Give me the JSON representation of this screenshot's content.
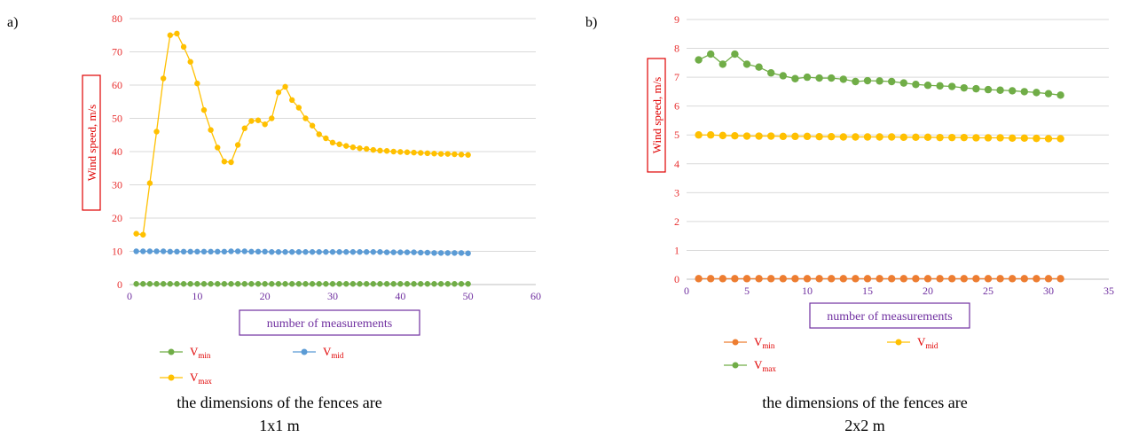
{
  "panels": {
    "a": "a)",
    "b": "b)"
  },
  "captions": {
    "a": {
      "line1": "the dimensions of the fences are",
      "line2": "1x1 m"
    },
    "b": {
      "line1": "the dimensions of the fences are",
      "line2": "2x2 m"
    }
  },
  "chart_data": [
    {
      "type": "line",
      "ylabel": "Wind speed, m/s",
      "xlabel": "number of measurements",
      "xlim": [
        0,
        60
      ],
      "ylim": [
        0,
        80
      ],
      "xticks": [
        0,
        10,
        20,
        30,
        40,
        50,
        60
      ],
      "yticks": [
        0,
        10,
        20,
        30,
        40,
        50,
        60,
        70,
        80
      ],
      "grid": "horizontal",
      "legend_position": "bottom-left",
      "series": [
        {
          "name": "V",
          "sub": "min",
          "color": "#70ad47",
          "x": [
            1,
            2,
            3,
            4,
            5,
            6,
            7,
            8,
            9,
            10,
            11,
            12,
            13,
            14,
            15,
            16,
            17,
            18,
            19,
            20,
            21,
            22,
            23,
            24,
            25,
            26,
            27,
            28,
            29,
            30,
            31,
            32,
            33,
            34,
            35,
            36,
            37,
            38,
            39,
            40,
            41,
            42,
            43,
            44,
            45,
            46,
            47,
            48,
            49,
            50
          ],
          "values": [
            0.2,
            0.2,
            0.2,
            0.2,
            0.2,
            0.2,
            0.2,
            0.2,
            0.2,
            0.2,
            0.2,
            0.2,
            0.2,
            0.2,
            0.2,
            0.2,
            0.2,
            0.2,
            0.2,
            0.2,
            0.2,
            0.2,
            0.2,
            0.2,
            0.2,
            0.2,
            0.2,
            0.2,
            0.2,
            0.2,
            0.2,
            0.2,
            0.2,
            0.2,
            0.2,
            0.2,
            0.2,
            0.2,
            0.2,
            0.2,
            0.2,
            0.2,
            0.2,
            0.2,
            0.2,
            0.2,
            0.2,
            0.2,
            0.2,
            0.2
          ]
        },
        {
          "name": "V",
          "sub": "max",
          "color": "#ffc000",
          "x": [
            1,
            2,
            3,
            4,
            5,
            6,
            7,
            8,
            9,
            10,
            11,
            12,
            13,
            14,
            15,
            16,
            17,
            18,
            19,
            20,
            21,
            22,
            23,
            24,
            25,
            26,
            27,
            28,
            29,
            30,
            31,
            32,
            33,
            34,
            35,
            36,
            37,
            38,
            39,
            40,
            41,
            42,
            43,
            44,
            45,
            46,
            47,
            48,
            49,
            50
          ],
          "values": [
            15.3,
            15,
            30.5,
            46,
            62,
            75,
            75.5,
            71.5,
            67,
            60.5,
            52.5,
            46.5,
            41.2,
            37,
            36.8,
            42,
            47,
            49.2,
            49.4,
            48.2,
            50,
            57.8,
            59.5,
            55.5,
            53.2,
            50,
            47.8,
            45.2,
            44,
            42.7,
            42.2,
            41.7,
            41.3,
            41,
            40.8,
            40.5,
            40.3,
            40.2,
            40,
            39.9,
            39.8,
            39.7,
            39.6,
            39.5,
            39.4,
            39.3,
            39.3,
            39.2,
            39.1,
            39
          ]
        },
        {
          "name": "V",
          "sub": "mid",
          "color": "#5b9bd5",
          "x": [
            1,
            2,
            3,
            4,
            5,
            6,
            7,
            8,
            9,
            10,
            11,
            12,
            13,
            14,
            15,
            16,
            17,
            18,
            19,
            20,
            21,
            22,
            23,
            24,
            25,
            26,
            27,
            28,
            29,
            30,
            31,
            32,
            33,
            34,
            35,
            36,
            37,
            38,
            39,
            40,
            41,
            42,
            43,
            44,
            45,
            46,
            47,
            48,
            49,
            50
          ],
          "values": [
            10,
            10,
            10,
            10,
            10,
            9.9,
            9.9,
            9.9,
            9.9,
            9.9,
            9.9,
            9.9,
            9.9,
            9.9,
            10,
            10,
            10,
            9.9,
            9.9,
            9.9,
            9.8,
            9.8,
            9.8,
            9.8,
            9.8,
            9.8,
            9.8,
            9.8,
            9.8,
            9.8,
            9.8,
            9.8,
            9.8,
            9.8,
            9.8,
            9.8,
            9.8,
            9.7,
            9.7,
            9.7,
            9.7,
            9.7,
            9.6,
            9.6,
            9.5,
            9.5,
            9.5,
            9.5,
            9.5,
            9.4
          ]
        }
      ]
    },
    {
      "type": "line",
      "ylabel": "Wind speed, m/s",
      "xlabel": "number of measurements",
      "xlim": [
        0,
        35
      ],
      "ylim": [
        0,
        9
      ],
      "xticks": [
        0,
        5,
        10,
        15,
        20,
        25,
        30,
        35
      ],
      "yticks": [
        0,
        1,
        2,
        3,
        4,
        5,
        6,
        7,
        8,
        9
      ],
      "grid": "horizontal",
      "legend_position": "bottom-left",
      "series": [
        {
          "name": "V",
          "sub": "min",
          "color": "#ed7d31",
          "x": [
            1,
            2,
            3,
            4,
            5,
            6,
            7,
            8,
            9,
            10,
            11,
            12,
            13,
            14,
            15,
            16,
            17,
            18,
            19,
            20,
            21,
            22,
            23,
            24,
            25,
            26,
            27,
            28,
            29,
            30,
            31
          ],
          "values": [
            0.02,
            0.02,
            0.02,
            0.02,
            0.02,
            0.02,
            0.02,
            0.02,
            0.02,
            0.02,
            0.02,
            0.02,
            0.02,
            0.02,
            0.02,
            0.02,
            0.02,
            0.02,
            0.02,
            0.02,
            0.02,
            0.02,
            0.02,
            0.02,
            0.02,
            0.02,
            0.02,
            0.02,
            0.02,
            0.02,
            0.02
          ]
        },
        {
          "name": "V",
          "sub": "mid",
          "color": "#ffc000",
          "x": [
            1,
            2,
            3,
            4,
            5,
            6,
            7,
            8,
            9,
            10,
            11,
            12,
            13,
            14,
            15,
            16,
            17,
            18,
            19,
            20,
            21,
            22,
            23,
            24,
            25,
            26,
            27,
            28,
            29,
            30,
            31
          ],
          "values": [
            5,
            5,
            4.98,
            4.97,
            4.96,
            4.96,
            4.96,
            4.95,
            4.95,
            4.95,
            4.94,
            4.94,
            4.93,
            4.93,
            4.93,
            4.93,
            4.93,
            4.92,
            4.92,
            4.92,
            4.91,
            4.91,
            4.91,
            4.9,
            4.9,
            4.9,
            4.89,
            4.89,
            4.88,
            4.87,
            4.87
          ]
        },
        {
          "name": "V",
          "sub": "max",
          "color": "#70ad47",
          "x": [
            1,
            2,
            3,
            4,
            5,
            6,
            7,
            8,
            9,
            10,
            11,
            12,
            13,
            14,
            15,
            16,
            17,
            18,
            19,
            20,
            21,
            22,
            23,
            24,
            25,
            26,
            27,
            28,
            29,
            30,
            31
          ],
          "values": [
            7.6,
            7.8,
            7.45,
            7.8,
            7.45,
            7.35,
            7.15,
            7.05,
            6.95,
            7,
            6.97,
            6.97,
            6.93,
            6.85,
            6.88,
            6.87,
            6.85,
            6.8,
            6.75,
            6.72,
            6.7,
            6.68,
            6.63,
            6.6,
            6.57,
            6.55,
            6.53,
            6.5,
            6.47,
            6.43,
            6.38
          ]
        }
      ]
    }
  ]
}
